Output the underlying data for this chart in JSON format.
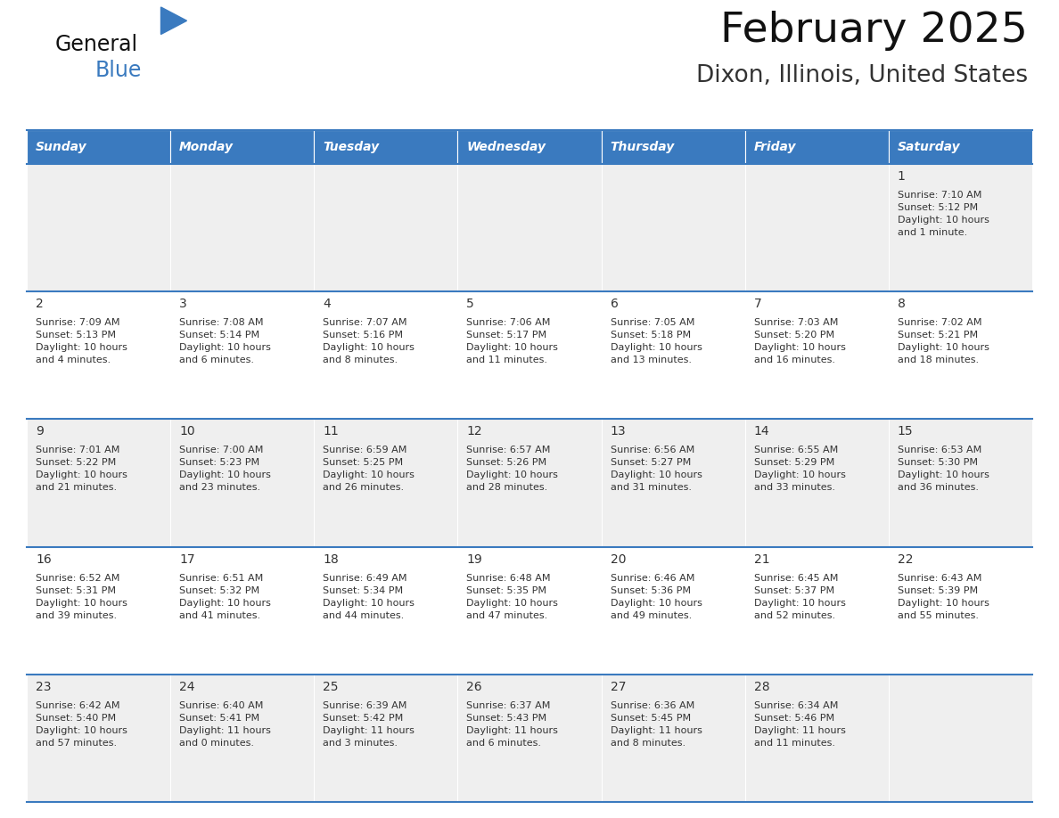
{
  "title": "February 2025",
  "subtitle": "Dixon, Illinois, United States",
  "header_bg_color": "#3a7abf",
  "header_text_color": "#ffffff",
  "cell_bg_color": "#ffffff",
  "alt_row_bg": "#efefef",
  "border_color": "#3a7abf",
  "day_number_color": "#333333",
  "cell_text_color": "#333333",
  "days_of_week": [
    "Sunday",
    "Monday",
    "Tuesday",
    "Wednesday",
    "Thursday",
    "Friday",
    "Saturday"
  ],
  "weeks": [
    [
      {
        "day": null,
        "info": null
      },
      {
        "day": null,
        "info": null
      },
      {
        "day": null,
        "info": null
      },
      {
        "day": null,
        "info": null
      },
      {
        "day": null,
        "info": null
      },
      {
        "day": null,
        "info": null
      },
      {
        "day": 1,
        "info": "Sunrise: 7:10 AM\nSunset: 5:12 PM\nDaylight: 10 hours\nand 1 minute."
      }
    ],
    [
      {
        "day": 2,
        "info": "Sunrise: 7:09 AM\nSunset: 5:13 PM\nDaylight: 10 hours\nand 4 minutes."
      },
      {
        "day": 3,
        "info": "Sunrise: 7:08 AM\nSunset: 5:14 PM\nDaylight: 10 hours\nand 6 minutes."
      },
      {
        "day": 4,
        "info": "Sunrise: 7:07 AM\nSunset: 5:16 PM\nDaylight: 10 hours\nand 8 minutes."
      },
      {
        "day": 5,
        "info": "Sunrise: 7:06 AM\nSunset: 5:17 PM\nDaylight: 10 hours\nand 11 minutes."
      },
      {
        "day": 6,
        "info": "Sunrise: 7:05 AM\nSunset: 5:18 PM\nDaylight: 10 hours\nand 13 minutes."
      },
      {
        "day": 7,
        "info": "Sunrise: 7:03 AM\nSunset: 5:20 PM\nDaylight: 10 hours\nand 16 minutes."
      },
      {
        "day": 8,
        "info": "Sunrise: 7:02 AM\nSunset: 5:21 PM\nDaylight: 10 hours\nand 18 minutes."
      }
    ],
    [
      {
        "day": 9,
        "info": "Sunrise: 7:01 AM\nSunset: 5:22 PM\nDaylight: 10 hours\nand 21 minutes."
      },
      {
        "day": 10,
        "info": "Sunrise: 7:00 AM\nSunset: 5:23 PM\nDaylight: 10 hours\nand 23 minutes."
      },
      {
        "day": 11,
        "info": "Sunrise: 6:59 AM\nSunset: 5:25 PM\nDaylight: 10 hours\nand 26 minutes."
      },
      {
        "day": 12,
        "info": "Sunrise: 6:57 AM\nSunset: 5:26 PM\nDaylight: 10 hours\nand 28 minutes."
      },
      {
        "day": 13,
        "info": "Sunrise: 6:56 AM\nSunset: 5:27 PM\nDaylight: 10 hours\nand 31 minutes."
      },
      {
        "day": 14,
        "info": "Sunrise: 6:55 AM\nSunset: 5:29 PM\nDaylight: 10 hours\nand 33 minutes."
      },
      {
        "day": 15,
        "info": "Sunrise: 6:53 AM\nSunset: 5:30 PM\nDaylight: 10 hours\nand 36 minutes."
      }
    ],
    [
      {
        "day": 16,
        "info": "Sunrise: 6:52 AM\nSunset: 5:31 PM\nDaylight: 10 hours\nand 39 minutes."
      },
      {
        "day": 17,
        "info": "Sunrise: 6:51 AM\nSunset: 5:32 PM\nDaylight: 10 hours\nand 41 minutes."
      },
      {
        "day": 18,
        "info": "Sunrise: 6:49 AM\nSunset: 5:34 PM\nDaylight: 10 hours\nand 44 minutes."
      },
      {
        "day": 19,
        "info": "Sunrise: 6:48 AM\nSunset: 5:35 PM\nDaylight: 10 hours\nand 47 minutes."
      },
      {
        "day": 20,
        "info": "Sunrise: 6:46 AM\nSunset: 5:36 PM\nDaylight: 10 hours\nand 49 minutes."
      },
      {
        "day": 21,
        "info": "Sunrise: 6:45 AM\nSunset: 5:37 PM\nDaylight: 10 hours\nand 52 minutes."
      },
      {
        "day": 22,
        "info": "Sunrise: 6:43 AM\nSunset: 5:39 PM\nDaylight: 10 hours\nand 55 minutes."
      }
    ],
    [
      {
        "day": 23,
        "info": "Sunrise: 6:42 AM\nSunset: 5:40 PM\nDaylight: 10 hours\nand 57 minutes."
      },
      {
        "day": 24,
        "info": "Sunrise: 6:40 AM\nSunset: 5:41 PM\nDaylight: 11 hours\nand 0 minutes."
      },
      {
        "day": 25,
        "info": "Sunrise: 6:39 AM\nSunset: 5:42 PM\nDaylight: 11 hours\nand 3 minutes."
      },
      {
        "day": 26,
        "info": "Sunrise: 6:37 AM\nSunset: 5:43 PM\nDaylight: 11 hours\nand 6 minutes."
      },
      {
        "day": 27,
        "info": "Sunrise: 6:36 AM\nSunset: 5:45 PM\nDaylight: 11 hours\nand 8 minutes."
      },
      {
        "day": 28,
        "info": "Sunrise: 6:34 AM\nSunset: 5:46 PM\nDaylight: 11 hours\nand 11 minutes."
      },
      {
        "day": null,
        "info": null
      }
    ]
  ],
  "fig_width": 11.88,
  "fig_height": 9.18,
  "header_fontsize": 10,
  "day_num_fontsize": 10,
  "info_fontsize": 8.0,
  "title_fontsize": 34,
  "subtitle_fontsize": 19,
  "logo_general_fontsize": 17,
  "logo_blue_fontsize": 17
}
